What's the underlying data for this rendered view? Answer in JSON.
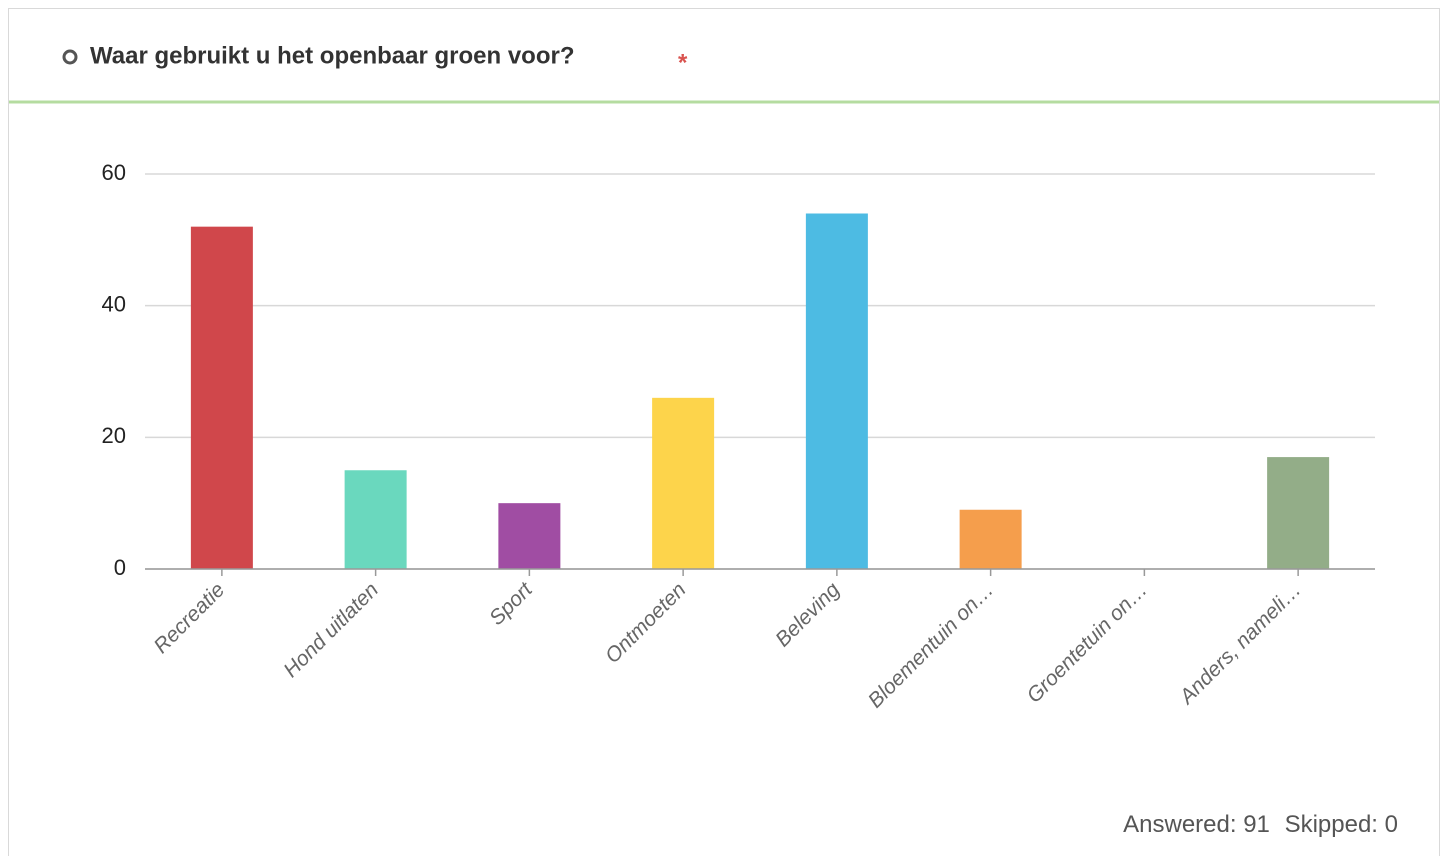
{
  "header": {
    "title": "Waar gebruikt u het openbaar groen voor?",
    "required_mark": "*"
  },
  "chart_data": {
    "type": "bar",
    "categories": [
      "Recreatie",
      "Hond uitlaten",
      "Sport",
      "Ontmoeten",
      "Beleving",
      "Bloementuin on…",
      "Groentetuin on…",
      "Anders, nameli…"
    ],
    "values": [
      52,
      15,
      10,
      26,
      54,
      9,
      0,
      17
    ],
    "colors": [
      "#d0474b",
      "#6ad8be",
      "#a04da3",
      "#fdd44b",
      "#4dbbe3",
      "#f59e4c",
      "#a0a0a0",
      "#93ad88"
    ],
    "ylim": [
      0,
      60
    ],
    "yticks": [
      0,
      20,
      40,
      60
    ],
    "grid": true
  },
  "footer": {
    "answered_label": "Answered:",
    "answered": 91,
    "skipped_label": "Skipped:",
    "skipped": 0
  }
}
